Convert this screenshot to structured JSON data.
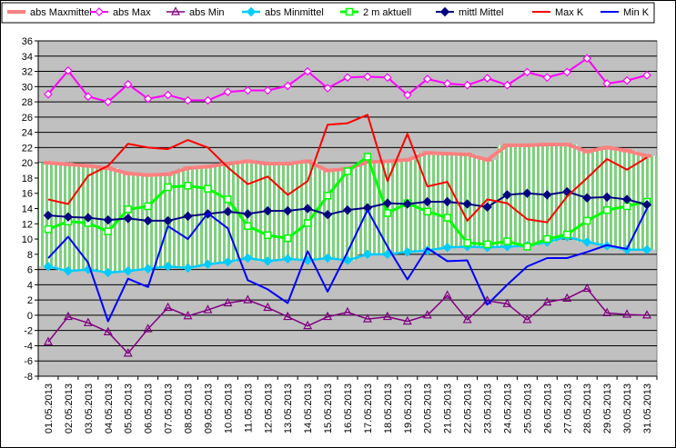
{
  "chart_data": {
    "type": "line",
    "title": "",
    "xlabel": "",
    "ylabel": "",
    "ylim": [
      -8,
      36
    ],
    "yticks": [
      -8,
      -6,
      -4,
      -2,
      0,
      2,
      4,
      6,
      8,
      10,
      12,
      14,
      16,
      18,
      20,
      22,
      24,
      26,
      28,
      30,
      32,
      34,
      36
    ],
    "grid": true,
    "legend_position": "top",
    "categories": [
      "01.05.2013",
      "02.05.2013",
      "03.05.2013",
      "04.05.2013",
      "05.05.2013",
      "06.05.2013",
      "07.05.2013",
      "08.05.2013",
      "09.05.2013",
      "10.05.2013",
      "11.05.2013",
      "12.05.2013",
      "13.05.2013",
      "14.05.2013",
      "15.05.2013",
      "16.05.2013",
      "17.05.2013",
      "18.05.2013",
      "19.05.2013",
      "20.05.2013",
      "21.05.2013",
      "22.05.2013",
      "23.05.2013",
      "24.05.2013",
      "25.05.2013",
      "26.05.2013",
      "27.05.2013",
      "28.05.2013",
      "29.05.2013",
      "30.05.2013",
      "31.05.2013"
    ],
    "series": [
      {
        "name": "abs Maxmittel",
        "color": "#ff8080",
        "marker": "dash",
        "values": [
          20.0,
          19.8,
          19.6,
          19.3,
          18.6,
          18.4,
          18.5,
          19.3,
          19.5,
          19.9,
          20.2,
          19.9,
          19.9,
          20.2,
          19.0,
          19.2,
          20.1,
          20.2,
          20.4,
          21.3,
          21.2,
          21.1,
          20.4,
          22.3,
          22.3,
          22.4,
          22.4,
          21.5,
          22.0,
          21.6,
          20.9
        ]
      },
      {
        "name": "abs Max",
        "color": "#ff00ff",
        "marker": "diamond-open",
        "values": [
          29.0,
          32.1,
          28.7,
          28.0,
          30.3,
          28.4,
          28.9,
          28.2,
          28.2,
          29.3,
          29.5,
          29.5,
          30.1,
          32.0,
          29.8,
          31.2,
          31.3,
          31.2,
          28.9,
          31.0,
          30.4,
          30.2,
          31.1,
          30.2,
          31.9,
          31.2,
          31.9,
          33.7,
          30.4,
          30.8,
          31.5
        ]
      },
      {
        "name": "abs Min",
        "color": "#800080",
        "marker": "triangle-open",
        "values": [
          -3.5,
          -0.2,
          -1.0,
          -2.2,
          -5.0,
          -1.8,
          1.0,
          -0.1,
          0.7,
          1.6,
          2.0,
          1.0,
          -0.2,
          -1.4,
          -0.2,
          0.4,
          -0.5,
          -0.2,
          -0.8,
          0.0,
          2.6,
          -0.6,
          1.9,
          1.5,
          -0.6,
          1.7,
          2.2,
          3.5,
          0.3,
          0.1,
          0.0
        ]
      },
      {
        "name": "abs Minmittel",
        "color": "#00ccff",
        "marker": "diamond-filled",
        "values": [
          6.4,
          5.8,
          6.0,
          5.6,
          5.8,
          6.1,
          6.4,
          6.2,
          6.7,
          7.0,
          7.5,
          7.1,
          7.4,
          7.2,
          7.5,
          7.2,
          8.0,
          8.0,
          8.3,
          8.5,
          8.9,
          9.0,
          8.9,
          9.0,
          9.1,
          9.6,
          10.3,
          9.6,
          9.1,
          8.6,
          8.6
        ]
      },
      {
        "name": "2 m aktuell",
        "color": "#00ff00",
        "marker": "square-open",
        "values": [
          11.3,
          12.3,
          12.1,
          11.0,
          13.9,
          14.3,
          16.8,
          17.0,
          16.6,
          15.2,
          11.7,
          10.5,
          10.1,
          12.1,
          15.7,
          18.9,
          20.8,
          13.4,
          14.7,
          13.6,
          12.8,
          9.5,
          9.3,
          9.7,
          9.0,
          10.0,
          10.6,
          12.4,
          13.8,
          14.3,
          14.9
        ]
      },
      {
        "name": "mittl Mittel",
        "color": "#000080",
        "marker": "diamond-filled",
        "values": [
          13.1,
          12.9,
          12.8,
          12.5,
          12.7,
          12.4,
          12.4,
          13.0,
          13.3,
          13.6,
          13.3,
          13.7,
          13.7,
          14.0,
          13.2,
          13.8,
          14.1,
          14.7,
          14.6,
          14.9,
          14.9,
          14.6,
          14.2,
          15.8,
          16.0,
          15.8,
          16.2,
          15.4,
          15.5,
          15.2,
          14.5
        ]
      },
      {
        "name": "Max K",
        "color": "#ff0000",
        "marker": "none",
        "values": [
          15.2,
          14.6,
          18.3,
          19.6,
          22.5,
          22.0,
          21.8,
          23.0,
          22.0,
          19.4,
          17.2,
          18.2,
          15.8,
          17.6,
          25.0,
          25.2,
          26.3,
          17.6,
          23.8,
          16.9,
          17.5,
          12.4,
          15.2,
          14.7,
          12.6,
          12.2,
          15.6,
          18.0,
          20.5,
          19.1,
          20.7
        ]
      },
      {
        "name": "Min K",
        "color": "#0000ff",
        "marker": "none",
        "values": [
          7.5,
          10.3,
          6.9,
          -0.8,
          4.8,
          3.7,
          11.7,
          10.0,
          13.4,
          11.4,
          4.6,
          3.4,
          1.6,
          8.4,
          3.1,
          8.3,
          13.8,
          9.0,
          4.7,
          8.8,
          7.1,
          7.2,
          1.4,
          4.0,
          6.4,
          7.5,
          7.5,
          8.3,
          9.2,
          8.7,
          14.0
        ]
      }
    ]
  }
}
